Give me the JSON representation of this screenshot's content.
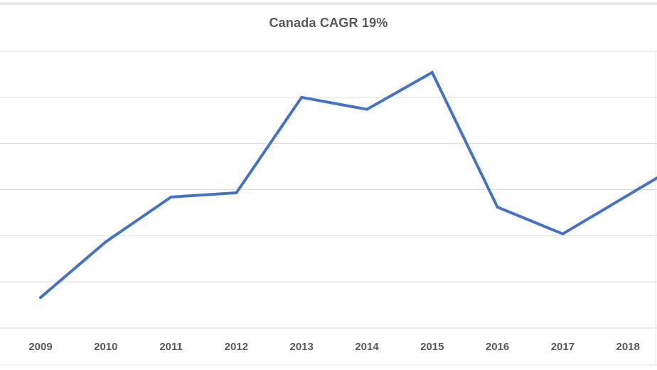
{
  "title": "Canada CAGR 19%",
  "colors": {
    "line": "#4472C4",
    "gridline": "#DCDCDC",
    "axis_line": "#D9D9D9",
    "chart_border": "#E6E6E6",
    "top_border": "#E9E9E9",
    "text": "#595959",
    "background": "#FFFFFF"
  },
  "chart_data": {
    "type": "line",
    "title": "Canada CAGR 19%",
    "categories": [
      "2009",
      "2010",
      "2011",
      "2012",
      "2013",
      "2014",
      "2015",
      "2016",
      "2017",
      "2018"
    ],
    "values": [
      0.66,
      1.87,
      2.84,
      2.93,
      5.0,
      4.74,
      5.54,
      2.62,
      2.04,
      2.88
    ],
    "xlabel": "",
    "ylabel": "",
    "ylim": [
      0,
      6
    ],
    "gridline_step": 1,
    "grid": "horizontal-only",
    "legend": "none",
    "y_axis_tick_labels_visible": false,
    "line_clipped_at_right_edge": true,
    "value_at_right_edge": 3.25,
    "series_name": "Canada"
  }
}
